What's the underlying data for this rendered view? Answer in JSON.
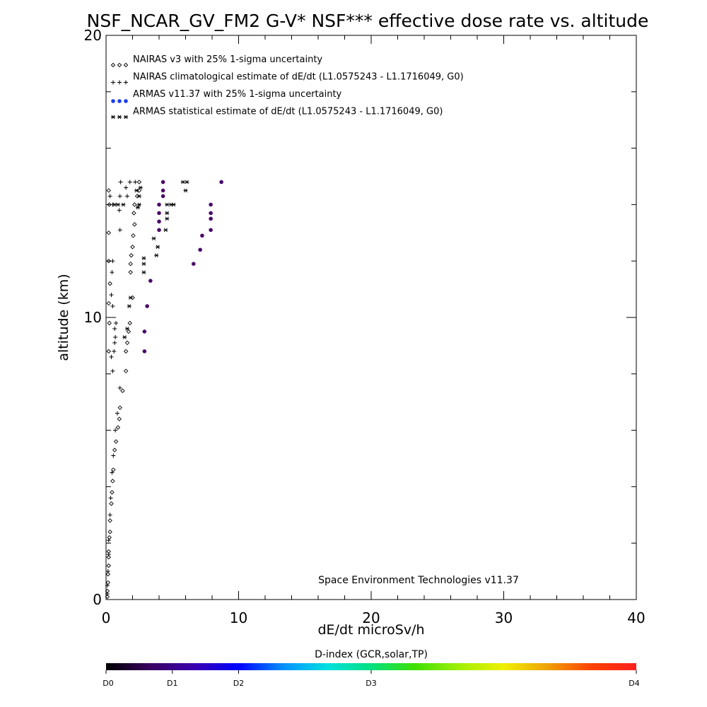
{
  "chart_data": {
    "type": "scatter",
    "title": "NSF_NCAR_GV_FM2 G-V* NSF*** effective dose rate vs. altitude",
    "xlabel": "dE/dt microSv/h",
    "ylabel": "altitude (km)",
    "xlim": [
      0,
      40
    ],
    "ylim": [
      0,
      20
    ],
    "x_ticks": [
      0,
      10,
      20,
      30,
      40
    ],
    "y_ticks": [
      0,
      10,
      20
    ],
    "x_tick_labels": [
      "0",
      "10",
      "20",
      "30",
      "40"
    ],
    "y_tick_labels": [
      "0",
      "10",
      "20"
    ],
    "grid": false,
    "legend_position": "top-left",
    "credit": "Space Environment Technologies v11.37",
    "series": [
      {
        "name": "NAIRAS v3 with 25% 1-sigma uncertainty",
        "marker": "diamond",
        "color": "#000000",
        "legend_symbol": "◇◇◇",
        "points": [
          [
            0.1,
            0.1
          ],
          [
            0.1,
            0.3
          ],
          [
            0.15,
            0.6
          ],
          [
            0.15,
            0.9
          ],
          [
            0.2,
            1.2
          ],
          [
            0.2,
            1.5
          ],
          [
            0.2,
            1.7
          ],
          [
            0.25,
            2.2
          ],
          [
            0.3,
            2.4
          ],
          [
            0.3,
            2.8
          ],
          [
            0.4,
            3.4
          ],
          [
            0.45,
            3.8
          ],
          [
            0.5,
            4.2
          ],
          [
            0.55,
            4.6
          ],
          [
            0.65,
            5.3
          ],
          [
            0.75,
            5.6
          ],
          [
            0.9,
            6.1
          ],
          [
            1.0,
            6.4
          ],
          [
            1.05,
            6.8
          ],
          [
            1.25,
            7.4
          ],
          [
            1.5,
            8.1
          ],
          [
            1.5,
            8.8
          ],
          [
            1.6,
            9.1
          ],
          [
            1.7,
            9.5
          ],
          [
            1.8,
            9.8
          ],
          [
            2.0,
            10.7
          ],
          [
            1.85,
            11.6
          ],
          [
            1.85,
            11.9
          ],
          [
            1.9,
            12.2
          ],
          [
            2.0,
            12.5
          ],
          [
            2.05,
            12.9
          ],
          [
            2.15,
            13.3
          ],
          [
            2.1,
            13.7
          ],
          [
            2.15,
            14.0
          ],
          [
            2.35,
            14.3
          ],
          [
            2.5,
            14.5
          ],
          [
            2.5,
            14.8
          ],
          [
            0.2,
            14.5
          ],
          [
            0.25,
            14.0
          ],
          [
            0.2,
            13.0
          ],
          [
            0.2,
            12.0
          ],
          [
            0.3,
            11.2
          ],
          [
            0.2,
            10.5
          ],
          [
            0.25,
            9.8
          ],
          [
            0.2,
            8.8
          ]
        ]
      },
      {
        "name": "NAIRAS climatological estimate of dE/dt (L1.0575243 - L1.1716049, G0)",
        "marker": "plus",
        "color": "#000000",
        "legend_symbol": "+++",
        "points": [
          [
            0.1,
            0.2
          ],
          [
            0.1,
            0.5
          ],
          [
            0.15,
            1.0
          ],
          [
            0.2,
            1.6
          ],
          [
            0.2,
            2.1
          ],
          [
            0.3,
            3.0
          ],
          [
            0.35,
            3.6
          ],
          [
            0.45,
            4.5
          ],
          [
            0.55,
            5.1
          ],
          [
            0.7,
            6.0
          ],
          [
            0.85,
            6.6
          ],
          [
            1.05,
            7.5
          ],
          [
            0.5,
            8.1
          ],
          [
            0.4,
            8.6
          ],
          [
            0.6,
            8.8
          ],
          [
            0.65,
            9.1
          ],
          [
            0.7,
            9.3
          ],
          [
            0.65,
            9.6
          ],
          [
            0.75,
            9.8
          ],
          [
            0.5,
            10.4
          ],
          [
            0.4,
            10.8
          ],
          [
            0.45,
            11.6
          ],
          [
            0.5,
            12.0
          ],
          [
            1.05,
            13.1
          ],
          [
            1.0,
            13.8
          ],
          [
            1.05,
            14.3
          ],
          [
            1.5,
            14.6
          ],
          [
            1.6,
            14.3
          ],
          [
            0.3,
            14.3
          ],
          [
            0.5,
            14.0
          ],
          [
            1.8,
            14.8
          ],
          [
            2.2,
            14.8
          ],
          [
            1.1,
            14.8
          ]
        ]
      },
      {
        "name": "ARMAS v11.37 with 25% 1-sigma uncertainty",
        "marker": "dot",
        "color": "#1a3cf0",
        "legend_symbol": "●●●",
        "points": [
          [
            2.9,
            8.8
          ],
          [
            2.9,
            9.5
          ],
          [
            3.1,
            10.4
          ],
          [
            3.35,
            11.3
          ],
          [
            6.6,
            11.9
          ],
          [
            7.1,
            12.4
          ],
          [
            7.25,
            12.9
          ],
          [
            7.9,
            13.1
          ],
          [
            7.9,
            13.5
          ],
          [
            7.9,
            13.7
          ],
          [
            7.9,
            14.0
          ],
          [
            4.0,
            13.1
          ],
          [
            4.0,
            13.4
          ],
          [
            4.0,
            13.7
          ],
          [
            4.0,
            14.0
          ],
          [
            4.3,
            14.5
          ],
          [
            4.3,
            14.8
          ],
          [
            8.7,
            14.8
          ],
          [
            4.3,
            14.3
          ]
        ]
      },
      {
        "name": "ARMAS statistical estimate of dE/dt (L1.0575243 - L1.1716049, G0)",
        "marker": "asterisk",
        "color": "#000000",
        "legend_symbol": "***",
        "points": [
          [
            1.4,
            9.3
          ],
          [
            1.6,
            9.6
          ],
          [
            1.75,
            10.4
          ],
          [
            1.85,
            10.7
          ],
          [
            2.85,
            11.6
          ],
          [
            2.85,
            11.9
          ],
          [
            2.85,
            12.1
          ],
          [
            3.6,
            12.8
          ],
          [
            3.8,
            12.2
          ],
          [
            3.9,
            12.5
          ],
          [
            4.5,
            13.1
          ],
          [
            4.6,
            13.5
          ],
          [
            4.6,
            13.7
          ],
          [
            2.4,
            13.9
          ],
          [
            2.5,
            14.0
          ],
          [
            2.5,
            14.3
          ],
          [
            4.6,
            14.0
          ],
          [
            4.9,
            14.0
          ],
          [
            5.1,
            14.0
          ],
          [
            6.0,
            14.5
          ],
          [
            6.1,
            14.8
          ],
          [
            5.8,
            14.8
          ],
          [
            2.3,
            14.5
          ],
          [
            2.6,
            14.6
          ],
          [
            1.3,
            14.0
          ],
          [
            0.9,
            14.0
          ],
          [
            0.65,
            14.0
          ]
        ]
      }
    ],
    "colorbar": {
      "title": "D-index (GCR,solar,TP)",
      "labels": [
        "D0",
        "D1",
        "D2",
        "D3",
        "D4"
      ],
      "label_positions": [
        0,
        0.125,
        0.25,
        0.5,
        1.0
      ],
      "colors": [
        "#000000",
        "#3a0060",
        "#3a00b0",
        "#0000ff",
        "#0090ff",
        "#00e0e0",
        "#00e080",
        "#40e000",
        "#a0f000",
        "#f0f000",
        "#f0a000",
        "#ff4000",
        "#ff2020"
      ]
    }
  }
}
